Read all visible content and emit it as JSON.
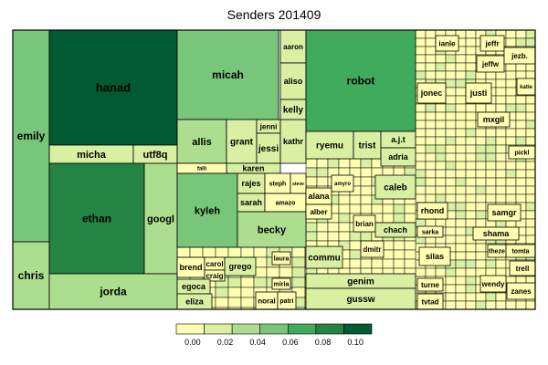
{
  "chart_data": {
    "type": "treemap",
    "title": "Senders 201409",
    "colors": [
      "#ffffb2",
      "#d9f0a3",
      "#addd8e",
      "#78c679",
      "#41ab5d",
      "#238443",
      "#005a32"
    ],
    "legend": {
      "ticks": [
        "0.00",
        "0.02",
        "0.04",
        "0.06",
        "0.08",
        "0.10"
      ],
      "range": [
        -0.01,
        0.11
      ]
    },
    "cells": [
      {
        "name": "emily",
        "value": 0.055
      },
      {
        "name": "chris",
        "value": 0.03
      },
      {
        "name": "hanad",
        "value": 0.11
      },
      {
        "name": "micha",
        "value": 0.02
      },
      {
        "name": "utf8q",
        "value": 0.015
      },
      {
        "name": "ethan",
        "value": 0.085
      },
      {
        "name": "googl",
        "value": 0.04
      },
      {
        "name": "jorda",
        "value": 0.04
      },
      {
        "name": "micah",
        "value": 0.045
      },
      {
        "name": "allis",
        "value": 0.03
      },
      {
        "name": "grant",
        "value": 0.01
      },
      {
        "name": "jessi",
        "value": 0.01
      },
      {
        "name": "jenni",
        "value": 0.01
      },
      {
        "name": "kathr",
        "value": 0.01
      },
      {
        "name": "aaron",
        "value": 0.01
      },
      {
        "name": "aliso",
        "value": 0.01
      },
      {
        "name": "kelly",
        "value": 0.01
      },
      {
        "name": "karen",
        "value": 0.01
      },
      {
        "name": "falli",
        "value": 0.005
      },
      {
        "name": "kyleh",
        "value": 0.05
      },
      {
        "name": "rajes",
        "value": 0.01
      },
      {
        "name": "steph",
        "value": 0.005
      },
      {
        "name": "steve",
        "value": 0.0
      },
      {
        "name": "sarah",
        "value": 0.01
      },
      {
        "name": "amazo",
        "value": 0.005
      },
      {
        "name": "becky",
        "value": 0.03
      },
      {
        "name": "robot",
        "value": 0.075
      },
      {
        "name": "ryemu",
        "value": 0.01
      },
      {
        "name": "trist",
        "value": 0.01
      },
      {
        "name": "a.j.t",
        "value": 0.01
      },
      {
        "name": "adria",
        "value": 0.01
      },
      {
        "name": "caleb",
        "value": 0.01
      },
      {
        "name": "alana",
        "value": 0.005
      },
      {
        "name": "amyro",
        "value": 0.005
      },
      {
        "name": "alber",
        "value": 0.005
      },
      {
        "name": "brian",
        "value": 0.005
      },
      {
        "name": "chach",
        "value": 0.01
      },
      {
        "name": "commu",
        "value": 0.01
      },
      {
        "name": "dmitr",
        "value": 0.005
      },
      {
        "name": "genim",
        "value": 0.01
      },
      {
        "name": "gussw",
        "value": 0.01
      },
      {
        "name": "brend",
        "value": 0.005
      },
      {
        "name": "carol",
        "value": 0.005
      },
      {
        "name": "craig",
        "value": 0.005
      },
      {
        "name": "grego",
        "value": 0.01
      },
      {
        "name": "egoca",
        "value": 0.01
      },
      {
        "name": "eliza",
        "value": 0.01
      },
      {
        "name": "laura",
        "value": 0.005
      },
      {
        "name": "miria",
        "value": 0.005
      },
      {
        "name": "noral",
        "value": 0.005
      },
      {
        "name": "patri",
        "value": 0.005
      },
      {
        "name": "ianle",
        "value": 0.005
      },
      {
        "name": "jeffr",
        "value": 0.005
      },
      {
        "name": "jeffw",
        "value": 0.005
      },
      {
        "name": "jezb.",
        "value": 0.005
      },
      {
        "name": "jonec",
        "value": 0.005
      },
      {
        "name": "justi",
        "value": 0.005
      },
      {
        "name": "katie",
        "value": 0.0
      },
      {
        "name": "mxgil",
        "value": 0.005
      },
      {
        "name": "pickl",
        "value": 0.0
      },
      {
        "name": "rhond",
        "value": 0.005
      },
      {
        "name": "samgr",
        "value": 0.005
      },
      {
        "name": "shama",
        "value": 0.005
      },
      {
        "name": "sarka",
        "value": 0.0
      },
      {
        "name": "silas",
        "value": 0.005
      },
      {
        "name": "theze",
        "value": 0.0
      },
      {
        "name": "tomta",
        "value": 0.0
      },
      {
        "name": "trell",
        "value": 0.0
      },
      {
        "name": "turne",
        "value": 0.005
      },
      {
        "name": "tvtad",
        "value": 0.005
      },
      {
        "name": "wendy",
        "value": 0.0
      },
      {
        "name": "zanes",
        "value": 0.0
      }
    ],
    "grid": false
  }
}
